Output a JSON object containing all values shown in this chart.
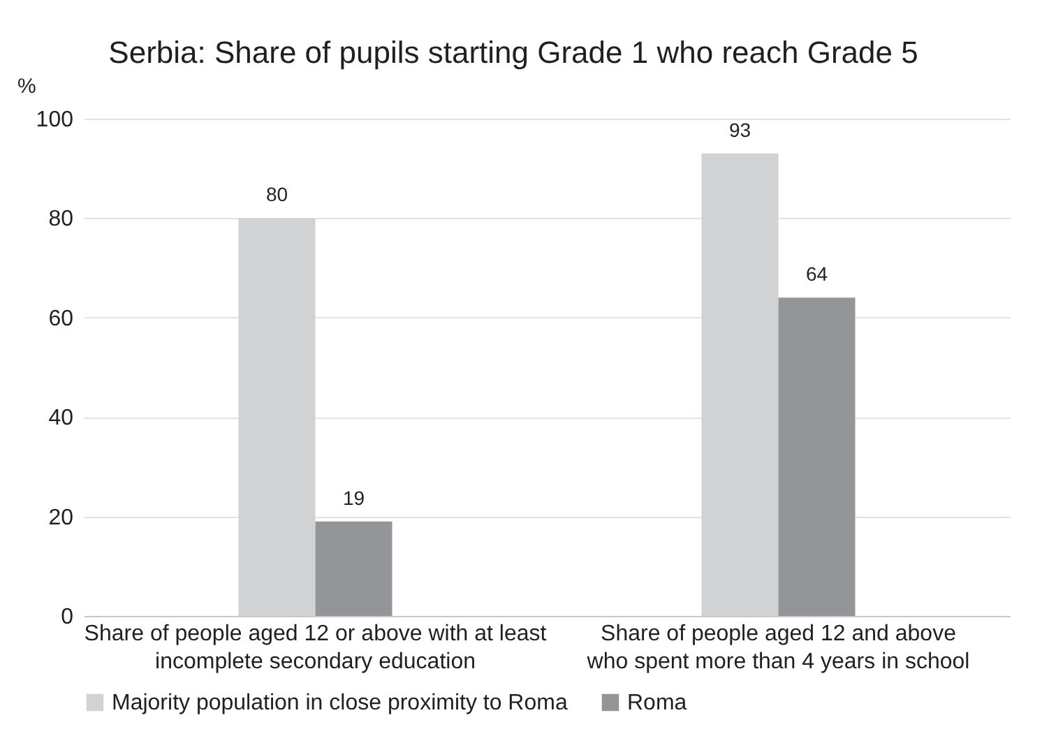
{
  "chart_data": {
    "type": "bar",
    "title": "Serbia: Share of pupils starting Grade 1 who reach Grade 5",
    "ylabel": "%",
    "categories": [
      "Share of people aged 12 or above with at least\nincomplete secondary education",
      "Share of people aged 12 and above\nwho spent more than 4 years in school"
    ],
    "series": [
      {
        "name": "Majority population in close proximity to Roma",
        "color": "#d1d2d4",
        "values": [
          80,
          93
        ]
      },
      {
        "name": "Roma",
        "color": "#939598",
        "values": [
          19,
          64
        ]
      }
    ],
    "ylim": [
      0,
      100
    ],
    "yticks": [
      0,
      20,
      40,
      60,
      80,
      100
    ],
    "grid": "y",
    "legend": "bottom",
    "data_labels": true
  }
}
